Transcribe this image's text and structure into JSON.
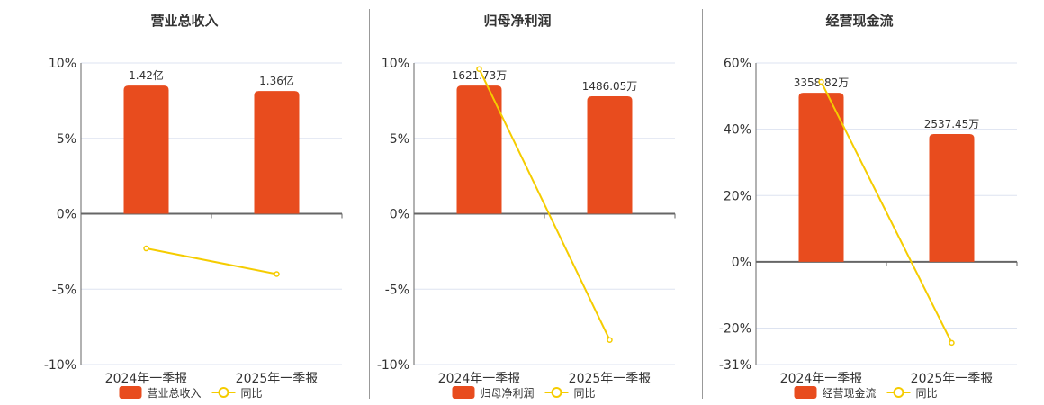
{
  "chart_data": [
    {
      "type": "bar+line",
      "title": "营业总收入",
      "categories": [
        "2024年一季报",
        "2025年一季报"
      ],
      "bar_series": {
        "name": "营业总收入",
        "values": [
          1.42,
          1.36
        ],
        "labels": [
          "1.42亿",
          "1.36亿"
        ],
        "unit": "亿"
      },
      "line_series": {
        "name": "同比",
        "values": [
          -2.3,
          -4.0
        ]
      },
      "yticks": [
        "10%",
        "5%",
        "0%",
        "-5%",
        "-10%"
      ],
      "ylim": [
        -10,
        10
      ],
      "grid": true,
      "legend": "bottom"
    },
    {
      "type": "bar+line",
      "title": "归母净利润",
      "categories": [
        "2024年一季报",
        "2025年一季报"
      ],
      "bar_series": {
        "name": "归母净利润",
        "values": [
          1621.73,
          1486.05
        ],
        "labels": [
          "1621.73万",
          "1486.05万"
        ],
        "unit": "万"
      },
      "line_series": {
        "name": "同比",
        "values": [
          9.6,
          -8.37
        ]
      },
      "yticks": [
        "10%",
        "5%",
        "0%",
        "-5%",
        "-10%"
      ],
      "ylim": [
        -10,
        10
      ],
      "grid": true,
      "legend": "bottom"
    },
    {
      "type": "bar+line",
      "title": "经营现金流",
      "categories": [
        "2024年一季报",
        "2025年一季报"
      ],
      "bar_series": {
        "name": "经营现金流",
        "values": [
          3358.82,
          2537.45
        ],
        "labels": [
          "3358.82万",
          "2537.45万"
        ],
        "unit": "万"
      },
      "line_series": {
        "name": "同比",
        "values": [
          54.3,
          -24.45
        ]
      },
      "yticks": [
        "60%",
        "40%",
        "20%",
        "0%",
        "-20%",
        "-31%"
      ],
      "ytick_values": [
        60,
        40,
        20,
        0,
        -20,
        -31
      ],
      "ylim": [
        -31,
        60
      ],
      "grid": true,
      "legend": "bottom"
    }
  ],
  "colors": {
    "bar": "#e84c1e",
    "line": "#f5cc00",
    "grid": "#dde3f0",
    "axis": "#666666",
    "text": "#333333"
  }
}
